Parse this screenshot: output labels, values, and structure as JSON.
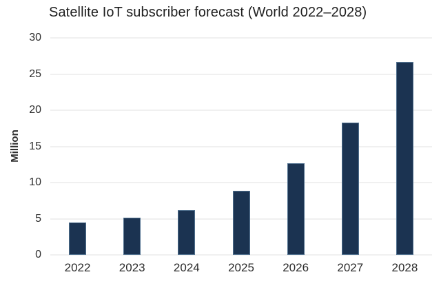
{
  "chart_data": {
    "type": "bar",
    "title": "Satellite IoT subscriber forecast (World 2022–2028)",
    "xlabel": "",
    "ylabel": "Million",
    "categories": [
      "2022",
      "2023",
      "2024",
      "2025",
      "2026",
      "2027",
      "2028"
    ],
    "values": [
      4.5,
      5.1,
      6.2,
      8.9,
      12.7,
      18.3,
      26.7
    ],
    "ylim": [
      0,
      30
    ],
    "yticks": [
      0,
      5,
      10,
      15,
      20,
      25,
      30
    ],
    "grid": "horizontal-only",
    "legend": "none",
    "colors": {
      "bar_fill": "#1b3351",
      "bar_border": "#51718f",
      "gridline": "#f0f0f0",
      "title_text": "#1f1f1f",
      "axis_text": "#2e2e2e",
      "background": "#ffffff"
    }
  }
}
